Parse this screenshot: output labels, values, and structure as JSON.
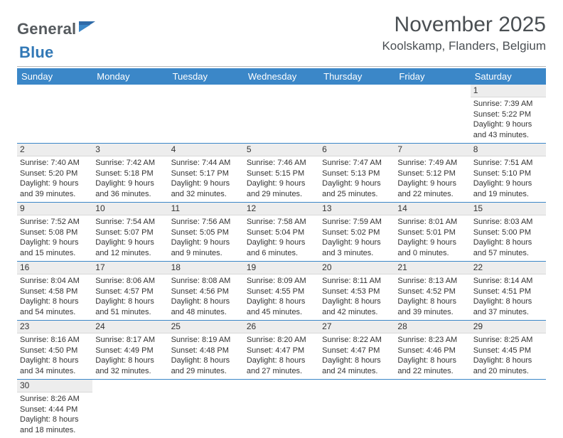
{
  "logo": {
    "text1": "General",
    "text2": "Blue"
  },
  "title": "November 2025",
  "location": "Koolskamp, Flanders, Belgium",
  "colors": {
    "header_bg": "#3b87c8",
    "header_text": "#ffffff",
    "daynum_bg": "#ededed",
    "row_border": "#3b87c8",
    "text": "#333333",
    "logo_gray": "#555a5e",
    "logo_blue": "#3178b6"
  },
  "day_names": [
    "Sunday",
    "Monday",
    "Tuesday",
    "Wednesday",
    "Thursday",
    "Friday",
    "Saturday"
  ],
  "weeks": [
    [
      null,
      null,
      null,
      null,
      null,
      null,
      {
        "n": "1",
        "sr": "Sunrise: 7:39 AM",
        "ss": "Sunset: 5:22 PM",
        "dl": "Daylight: 9 hours and 43 minutes."
      }
    ],
    [
      {
        "n": "2",
        "sr": "Sunrise: 7:40 AM",
        "ss": "Sunset: 5:20 PM",
        "dl": "Daylight: 9 hours and 39 minutes."
      },
      {
        "n": "3",
        "sr": "Sunrise: 7:42 AM",
        "ss": "Sunset: 5:18 PM",
        "dl": "Daylight: 9 hours and 36 minutes."
      },
      {
        "n": "4",
        "sr": "Sunrise: 7:44 AM",
        "ss": "Sunset: 5:17 PM",
        "dl": "Daylight: 9 hours and 32 minutes."
      },
      {
        "n": "5",
        "sr": "Sunrise: 7:46 AM",
        "ss": "Sunset: 5:15 PM",
        "dl": "Daylight: 9 hours and 29 minutes."
      },
      {
        "n": "6",
        "sr": "Sunrise: 7:47 AM",
        "ss": "Sunset: 5:13 PM",
        "dl": "Daylight: 9 hours and 25 minutes."
      },
      {
        "n": "7",
        "sr": "Sunrise: 7:49 AM",
        "ss": "Sunset: 5:12 PM",
        "dl": "Daylight: 9 hours and 22 minutes."
      },
      {
        "n": "8",
        "sr": "Sunrise: 7:51 AM",
        "ss": "Sunset: 5:10 PM",
        "dl": "Daylight: 9 hours and 19 minutes."
      }
    ],
    [
      {
        "n": "9",
        "sr": "Sunrise: 7:52 AM",
        "ss": "Sunset: 5:08 PM",
        "dl": "Daylight: 9 hours and 15 minutes."
      },
      {
        "n": "10",
        "sr": "Sunrise: 7:54 AM",
        "ss": "Sunset: 5:07 PM",
        "dl": "Daylight: 9 hours and 12 minutes."
      },
      {
        "n": "11",
        "sr": "Sunrise: 7:56 AM",
        "ss": "Sunset: 5:05 PM",
        "dl": "Daylight: 9 hours and 9 minutes."
      },
      {
        "n": "12",
        "sr": "Sunrise: 7:58 AM",
        "ss": "Sunset: 5:04 PM",
        "dl": "Daylight: 9 hours and 6 minutes."
      },
      {
        "n": "13",
        "sr": "Sunrise: 7:59 AM",
        "ss": "Sunset: 5:02 PM",
        "dl": "Daylight: 9 hours and 3 minutes."
      },
      {
        "n": "14",
        "sr": "Sunrise: 8:01 AM",
        "ss": "Sunset: 5:01 PM",
        "dl": "Daylight: 9 hours and 0 minutes."
      },
      {
        "n": "15",
        "sr": "Sunrise: 8:03 AM",
        "ss": "Sunset: 5:00 PM",
        "dl": "Daylight: 8 hours and 57 minutes."
      }
    ],
    [
      {
        "n": "16",
        "sr": "Sunrise: 8:04 AM",
        "ss": "Sunset: 4:58 PM",
        "dl": "Daylight: 8 hours and 54 minutes."
      },
      {
        "n": "17",
        "sr": "Sunrise: 8:06 AM",
        "ss": "Sunset: 4:57 PM",
        "dl": "Daylight: 8 hours and 51 minutes."
      },
      {
        "n": "18",
        "sr": "Sunrise: 8:08 AM",
        "ss": "Sunset: 4:56 PM",
        "dl": "Daylight: 8 hours and 48 minutes."
      },
      {
        "n": "19",
        "sr": "Sunrise: 8:09 AM",
        "ss": "Sunset: 4:55 PM",
        "dl": "Daylight: 8 hours and 45 minutes."
      },
      {
        "n": "20",
        "sr": "Sunrise: 8:11 AM",
        "ss": "Sunset: 4:53 PM",
        "dl": "Daylight: 8 hours and 42 minutes."
      },
      {
        "n": "21",
        "sr": "Sunrise: 8:13 AM",
        "ss": "Sunset: 4:52 PM",
        "dl": "Daylight: 8 hours and 39 minutes."
      },
      {
        "n": "22",
        "sr": "Sunrise: 8:14 AM",
        "ss": "Sunset: 4:51 PM",
        "dl": "Daylight: 8 hours and 37 minutes."
      }
    ],
    [
      {
        "n": "23",
        "sr": "Sunrise: 8:16 AM",
        "ss": "Sunset: 4:50 PM",
        "dl": "Daylight: 8 hours and 34 minutes."
      },
      {
        "n": "24",
        "sr": "Sunrise: 8:17 AM",
        "ss": "Sunset: 4:49 PM",
        "dl": "Daylight: 8 hours and 32 minutes."
      },
      {
        "n": "25",
        "sr": "Sunrise: 8:19 AM",
        "ss": "Sunset: 4:48 PM",
        "dl": "Daylight: 8 hours and 29 minutes."
      },
      {
        "n": "26",
        "sr": "Sunrise: 8:20 AM",
        "ss": "Sunset: 4:47 PM",
        "dl": "Daylight: 8 hours and 27 minutes."
      },
      {
        "n": "27",
        "sr": "Sunrise: 8:22 AM",
        "ss": "Sunset: 4:47 PM",
        "dl": "Daylight: 8 hours and 24 minutes."
      },
      {
        "n": "28",
        "sr": "Sunrise: 8:23 AM",
        "ss": "Sunset: 4:46 PM",
        "dl": "Daylight: 8 hours and 22 minutes."
      },
      {
        "n": "29",
        "sr": "Sunrise: 8:25 AM",
        "ss": "Sunset: 4:45 PM",
        "dl": "Daylight: 8 hours and 20 minutes."
      }
    ],
    [
      {
        "n": "30",
        "sr": "Sunrise: 8:26 AM",
        "ss": "Sunset: 4:44 PM",
        "dl": "Daylight: 8 hours and 18 minutes."
      },
      null,
      null,
      null,
      null,
      null,
      null
    ]
  ]
}
